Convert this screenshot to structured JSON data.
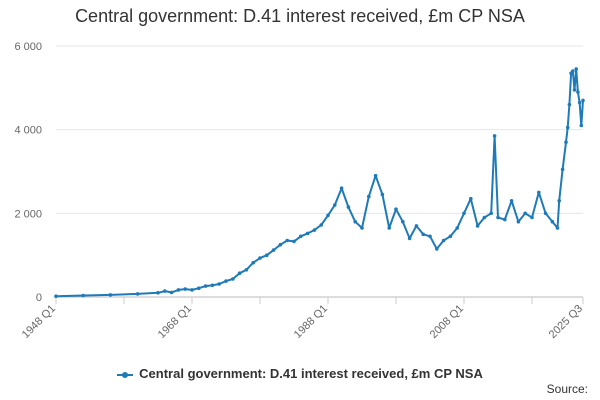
{
  "chart_data": {
    "type": "line",
    "title": "Central government: D.41 interest received, £m CP NSA",
    "xlabel": "",
    "ylabel": "",
    "ylim": [
      0,
      6000
    ],
    "yticks": [
      "0",
      "2 000",
      "4 000",
      "6 000"
    ],
    "xticks": [
      "1948 Q1",
      "1968 Q1",
      "1988 Q1",
      "2008 Q1",
      "2025 Q3"
    ],
    "x_range": [
      "1948 Q1",
      "2025 Q3"
    ],
    "grid": "horizontal",
    "legend": "bottom",
    "color": "#1f7ab8",
    "series": [
      {
        "name": "Central government: D.41 interest received, £m CP NSA",
        "points": [
          [
            "1948 Q1",
            20
          ],
          [
            "1952 Q1",
            35
          ],
          [
            "1956 Q1",
            50
          ],
          [
            "1960 Q1",
            75
          ],
          [
            "1963 Q1",
            100
          ],
          [
            "1964 Q1",
            140
          ],
          [
            "1965 Q1",
            110
          ],
          [
            "1966 Q1",
            170
          ],
          [
            "1967 Q1",
            190
          ],
          [
            "1968 Q1",
            170
          ],
          [
            "1969 Q1",
            210
          ],
          [
            "1970 Q1",
            260
          ],
          [
            "1971 Q1",
            280
          ],
          [
            "1972 Q1",
            310
          ],
          [
            "1973 Q1",
            380
          ],
          [
            "1974 Q1",
            430
          ],
          [
            "1975 Q1",
            570
          ],
          [
            "1976 Q1",
            650
          ],
          [
            "1977 Q1",
            820
          ],
          [
            "1978 Q1",
            930
          ],
          [
            "1979 Q1",
            1000
          ],
          [
            "1980 Q1",
            1120
          ],
          [
            "1981 Q1",
            1250
          ],
          [
            "1982 Q1",
            1350
          ],
          [
            "1983 Q1",
            1330
          ],
          [
            "1984 Q1",
            1450
          ],
          [
            "1985 Q1",
            1520
          ],
          [
            "1986 Q1",
            1600
          ],
          [
            "1987 Q1",
            1720
          ],
          [
            "1988 Q1",
            1950
          ],
          [
            "1989 Q1",
            2200
          ],
          [
            "1990 Q1",
            2600
          ],
          [
            "1991 Q1",
            2150
          ],
          [
            "1992 Q1",
            1800
          ],
          [
            "1993 Q1",
            1650
          ],
          [
            "1994 Q1",
            2400
          ],
          [
            "1995 Q1",
            2900
          ],
          [
            "1996 Q1",
            2450
          ],
          [
            "1997 Q1",
            1650
          ],
          [
            "1998 Q1",
            2100
          ],
          [
            "1999 Q1",
            1800
          ],
          [
            "2000 Q1",
            1400
          ],
          [
            "2001 Q1",
            1700
          ],
          [
            "2002 Q1",
            1500
          ],
          [
            "2003 Q1",
            1450
          ],
          [
            "2004 Q1",
            1150
          ],
          [
            "2005 Q1",
            1350
          ],
          [
            "2006 Q1",
            1450
          ],
          [
            "2007 Q1",
            1650
          ],
          [
            "2008 Q1",
            2000
          ],
          [
            "2009 Q1",
            2350
          ],
          [
            "2010 Q1",
            1700
          ],
          [
            "2011 Q1",
            1900
          ],
          [
            "2012 Q1",
            2000
          ],
          [
            "2012 Q3",
            3850
          ],
          [
            "2013 Q1",
            1900
          ],
          [
            "2014 Q1",
            1850
          ],
          [
            "2015 Q1",
            2300
          ],
          [
            "2016 Q1",
            1800
          ],
          [
            "2017 Q1",
            2000
          ],
          [
            "2018 Q1",
            1900
          ],
          [
            "2019 Q1",
            2500
          ],
          [
            "2020 Q1",
            2000
          ],
          [
            "2021 Q1",
            1800
          ],
          [
            "2021 Q4",
            1650
          ],
          [
            "2022 Q1",
            2300
          ],
          [
            "2022 Q3",
            3050
          ],
          [
            "2023 Q1",
            3700
          ],
          [
            "2023 Q2",
            4050
          ],
          [
            "2023 Q3",
            4600
          ],
          [
            "2023 Q4",
            5350
          ],
          [
            "2024 Q1",
            5400
          ],
          [
            "2024 Q2",
            4950
          ],
          [
            "2024 Q3",
            5450
          ],
          [
            "2024 Q4",
            4900
          ],
          [
            "2025 Q1",
            4650
          ],
          [
            "2025 Q2",
            4100
          ],
          [
            "2025 Q3",
            4700
          ]
        ]
      }
    ]
  },
  "source_label": "Source:"
}
